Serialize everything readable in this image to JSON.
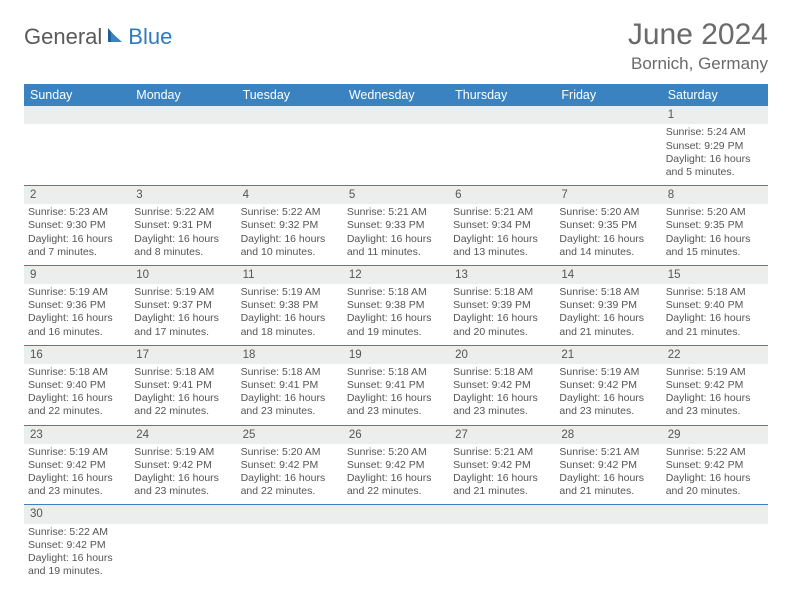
{
  "brand": {
    "part1": "General",
    "part2": "Blue"
  },
  "title": "June 2024",
  "location": "Bornich, Germany",
  "colors": {
    "header_bg": "#3b83c0",
    "header_text": "#ffffff",
    "daynum_bg": "#eceeee",
    "cell_border": "#3b83c0",
    "text": "#555555",
    "title_text": "#6a6a6a"
  },
  "fonts": {
    "title_size": 30,
    "location_size": 17,
    "header_size": 12.5,
    "cell_size": 10.5
  },
  "weekdays": [
    "Sunday",
    "Monday",
    "Tuesday",
    "Wednesday",
    "Thursday",
    "Friday",
    "Saturday"
  ],
  "weeks": [
    {
      "nums": [
        "",
        "",
        "",
        "",
        "",
        "",
        "1"
      ],
      "details": [
        "",
        "",
        "",
        "",
        "",
        "",
        "Sunrise: 5:24 AM\nSunset: 9:29 PM\nDaylight: 16 hours and 5 minutes."
      ]
    },
    {
      "nums": [
        "2",
        "3",
        "4",
        "5",
        "6",
        "7",
        "8"
      ],
      "details": [
        "Sunrise: 5:23 AM\nSunset: 9:30 PM\nDaylight: 16 hours and 7 minutes.",
        "Sunrise: 5:22 AM\nSunset: 9:31 PM\nDaylight: 16 hours and 8 minutes.",
        "Sunrise: 5:22 AM\nSunset: 9:32 PM\nDaylight: 16 hours and 10 minutes.",
        "Sunrise: 5:21 AM\nSunset: 9:33 PM\nDaylight: 16 hours and 11 minutes.",
        "Sunrise: 5:21 AM\nSunset: 9:34 PM\nDaylight: 16 hours and 13 minutes.",
        "Sunrise: 5:20 AM\nSunset: 9:35 PM\nDaylight: 16 hours and 14 minutes.",
        "Sunrise: 5:20 AM\nSunset: 9:35 PM\nDaylight: 16 hours and 15 minutes."
      ]
    },
    {
      "nums": [
        "9",
        "10",
        "11",
        "12",
        "13",
        "14",
        "15"
      ],
      "details": [
        "Sunrise: 5:19 AM\nSunset: 9:36 PM\nDaylight: 16 hours and 16 minutes.",
        "Sunrise: 5:19 AM\nSunset: 9:37 PM\nDaylight: 16 hours and 17 minutes.",
        "Sunrise: 5:19 AM\nSunset: 9:38 PM\nDaylight: 16 hours and 18 minutes.",
        "Sunrise: 5:18 AM\nSunset: 9:38 PM\nDaylight: 16 hours and 19 minutes.",
        "Sunrise: 5:18 AM\nSunset: 9:39 PM\nDaylight: 16 hours and 20 minutes.",
        "Sunrise: 5:18 AM\nSunset: 9:39 PM\nDaylight: 16 hours and 21 minutes.",
        "Sunrise: 5:18 AM\nSunset: 9:40 PM\nDaylight: 16 hours and 21 minutes."
      ]
    },
    {
      "nums": [
        "16",
        "17",
        "18",
        "19",
        "20",
        "21",
        "22"
      ],
      "details": [
        "Sunrise: 5:18 AM\nSunset: 9:40 PM\nDaylight: 16 hours and 22 minutes.",
        "Sunrise: 5:18 AM\nSunset: 9:41 PM\nDaylight: 16 hours and 22 minutes.",
        "Sunrise: 5:18 AM\nSunset: 9:41 PM\nDaylight: 16 hours and 23 minutes.",
        "Sunrise: 5:18 AM\nSunset: 9:41 PM\nDaylight: 16 hours and 23 minutes.",
        "Sunrise: 5:18 AM\nSunset: 9:42 PM\nDaylight: 16 hours and 23 minutes.",
        "Sunrise: 5:19 AM\nSunset: 9:42 PM\nDaylight: 16 hours and 23 minutes.",
        "Sunrise: 5:19 AM\nSunset: 9:42 PM\nDaylight: 16 hours and 23 minutes."
      ]
    },
    {
      "nums": [
        "23",
        "24",
        "25",
        "26",
        "27",
        "28",
        "29"
      ],
      "details": [
        "Sunrise: 5:19 AM\nSunset: 9:42 PM\nDaylight: 16 hours and 23 minutes.",
        "Sunrise: 5:19 AM\nSunset: 9:42 PM\nDaylight: 16 hours and 23 minutes.",
        "Sunrise: 5:20 AM\nSunset: 9:42 PM\nDaylight: 16 hours and 22 minutes.",
        "Sunrise: 5:20 AM\nSunset: 9:42 PM\nDaylight: 16 hours and 22 minutes.",
        "Sunrise: 5:21 AM\nSunset: 9:42 PM\nDaylight: 16 hours and 21 minutes.",
        "Sunrise: 5:21 AM\nSunset: 9:42 PM\nDaylight: 16 hours and 21 minutes.",
        "Sunrise: 5:22 AM\nSunset: 9:42 PM\nDaylight: 16 hours and 20 minutes."
      ]
    },
    {
      "nums": [
        "30",
        "",
        "",
        "",
        "",
        "",
        ""
      ],
      "details": [
        "Sunrise: 5:22 AM\nSunset: 9:42 PM\nDaylight: 16 hours and 19 minutes.",
        "",
        "",
        "",
        "",
        "",
        ""
      ]
    }
  ]
}
